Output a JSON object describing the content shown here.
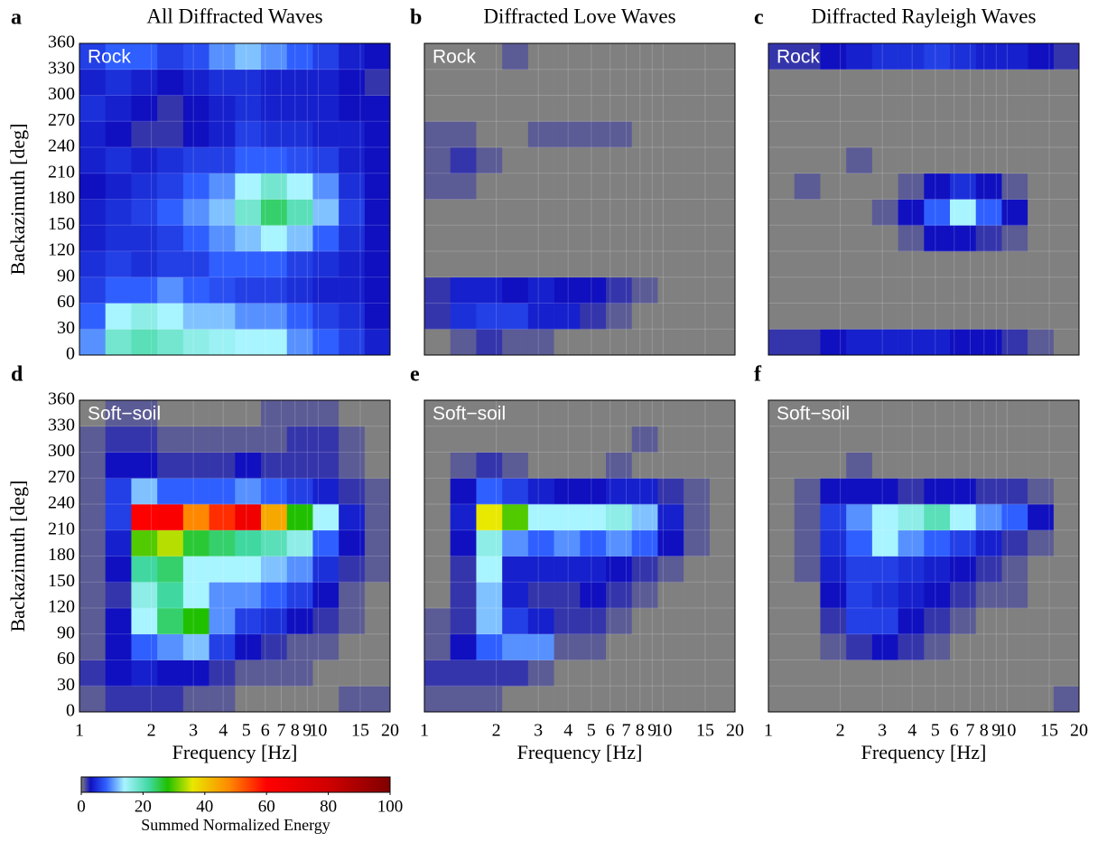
{
  "chart_data": [
    {
      "type": "heatmap",
      "label": "a",
      "title": "All Diffracted Waves",
      "annotation": "Rock",
      "ylabel": "Backazimuth [deg]",
      "xscale": "log",
      "xlim": [
        1,
        20
      ],
      "ylim": [
        0,
        360
      ],
      "xticks": [
        1,
        2,
        3,
        4,
        5,
        6,
        7,
        8,
        9,
        10,
        15,
        20
      ],
      "yticks": [
        0,
        30,
        60,
        90,
        120,
        150,
        180,
        210,
        240,
        270,
        300,
        330,
        360
      ],
      "xbins": [
        1,
        1.284,
        1.649,
        2.118,
        2.719,
        3.492,
        4.484,
        5.757,
        7.393,
        9.493,
        12.19,
        15.65,
        20
      ],
      "ybins": [
        0,
        30,
        60,
        90,
        120,
        150,
        180,
        210,
        240,
        270,
        300,
        330,
        360
      ],
      "values": [
        [
          10,
          18,
          20,
          18,
          16,
          15,
          14,
          14,
          10,
          8,
          6,
          4
        ],
        [
          8,
          14,
          16,
          14,
          12,
          12,
          10,
          10,
          8,
          6,
          5,
          3
        ],
        [
          6,
          8,
          8,
          10,
          8,
          7,
          6,
          6,
          5,
          4,
          4,
          3
        ],
        [
          5,
          6,
          5,
          6,
          6,
          8,
          8,
          8,
          6,
          5,
          4,
          3
        ],
        [
          4,
          5,
          5,
          6,
          8,
          10,
          12,
          14,
          12,
          8,
          5,
          3
        ],
        [
          4,
          5,
          6,
          8,
          10,
          12,
          18,
          24,
          20,
          12,
          6,
          3
        ],
        [
          3,
          4,
          5,
          6,
          8,
          10,
          14,
          18,
          14,
          10,
          5,
          3
        ],
        [
          4,
          5,
          4,
          5,
          6,
          6,
          8,
          8,
          7,
          6,
          4,
          3
        ],
        [
          4,
          3,
          2,
          2,
          3,
          4,
          6,
          5,
          5,
          4,
          4,
          3
        ],
        [
          5,
          4,
          3,
          2,
          3,
          4,
          5,
          4,
          4,
          4,
          3,
          3
        ],
        [
          4,
          5,
          4,
          3,
          4,
          5,
          5,
          4,
          4,
          4,
          3,
          2
        ],
        [
          6,
          8,
          8,
          6,
          7,
          10,
          12,
          10,
          8,
          6,
          4,
          3
        ]
      ]
    },
    {
      "type": "heatmap",
      "label": "b",
      "title": "Diffracted Love Waves",
      "annotation": "Rock",
      "xscale": "log",
      "xlim": [
        1,
        20
      ],
      "ylim": [
        0,
        360
      ],
      "xticks": [
        1,
        2,
        3,
        4,
        5,
        6,
        7,
        8,
        9,
        10,
        15,
        20
      ],
      "yticks": [
        0,
        30,
        60,
        90,
        120,
        150,
        180,
        210,
        240,
        270,
        300,
        330,
        360
      ],
      "xbins": [
        1,
        1.284,
        1.649,
        2.118,
        2.719,
        3.492,
        4.484,
        5.757,
        7.393,
        9.493,
        12.19,
        15.65,
        20
      ],
      "ybins": [
        0,
        30,
        60,
        90,
        120,
        150,
        180,
        210,
        240,
        270,
        300,
        330,
        360
      ],
      "values": [
        [
          0,
          1,
          2,
          1,
          1,
          0,
          0,
          0,
          0,
          0,
          0,
          0
        ],
        [
          2,
          5,
          6,
          6,
          4,
          4,
          2,
          1,
          0,
          0,
          0,
          0
        ],
        [
          2,
          4,
          4,
          3,
          4,
          3,
          3,
          2,
          1,
          0,
          0,
          0
        ],
        [
          0,
          0,
          0,
          0,
          0,
          0,
          0,
          0,
          0,
          0,
          0,
          0
        ],
        [
          0,
          0,
          0,
          0,
          0,
          0,
          0,
          0,
          0,
          0,
          0,
          0
        ],
        [
          0,
          0,
          0,
          0,
          0,
          0,
          0,
          0,
          0,
          0,
          0,
          0
        ],
        [
          1,
          1,
          0,
          0,
          0,
          0,
          0,
          0,
          0,
          0,
          0,
          0
        ],
        [
          1,
          2,
          1,
          0,
          0,
          0,
          0,
          0,
          0,
          0,
          0,
          0
        ],
        [
          1,
          1,
          0,
          0,
          1,
          1,
          1,
          1,
          0,
          0,
          0,
          0
        ],
        [
          0,
          0,
          0,
          0,
          0,
          0,
          0,
          0,
          0,
          0,
          0,
          0
        ],
        [
          0,
          0,
          0,
          0,
          0,
          0,
          0,
          0,
          0,
          0,
          0,
          0
        ],
        [
          0,
          0,
          0,
          1,
          0,
          0,
          0,
          0,
          0,
          0,
          0,
          0
        ]
      ]
    },
    {
      "type": "heatmap",
      "label": "c",
      "title": "Diffracted Rayleigh Waves",
      "annotation": "Rock",
      "xscale": "log",
      "xlim": [
        1,
        20
      ],
      "ylim": [
        0,
        360
      ],
      "xticks": [
        1,
        2,
        3,
        4,
        5,
        6,
        7,
        8,
        9,
        10,
        15,
        20
      ],
      "yticks": [
        0,
        30,
        60,
        90,
        120,
        150,
        180,
        210,
        240,
        270,
        300,
        330,
        360
      ],
      "xbins": [
        1,
        1.284,
        1.649,
        2.118,
        2.719,
        3.492,
        4.484,
        5.757,
        7.393,
        9.493,
        12.19,
        15.65,
        20
      ],
      "ybins": [
        0,
        30,
        60,
        90,
        120,
        150,
        180,
        210,
        240,
        270,
        300,
        330,
        360
      ],
      "values": [
        [
          2,
          2,
          3,
          4,
          4,
          4,
          4,
          3,
          3,
          2,
          1,
          0
        ],
        [
          0,
          0,
          0,
          0,
          0,
          0,
          0,
          0,
          0,
          0,
          0,
          0
        ],
        [
          0,
          0,
          0,
          0,
          0,
          0,
          0,
          0,
          0,
          0,
          0,
          0
        ],
        [
          0,
          0,
          0,
          0,
          0,
          0,
          0,
          0,
          0,
          0,
          0,
          0
        ],
        [
          0,
          0,
          0,
          0,
          0,
          1,
          3,
          3,
          2,
          1,
          0,
          0
        ],
        [
          0,
          0,
          0,
          0,
          1,
          3,
          8,
          14,
          8,
          3,
          0,
          0
        ],
        [
          0,
          1,
          0,
          0,
          0,
          1,
          3,
          5,
          3,
          1,
          0,
          0
        ],
        [
          0,
          0,
          0,
          1,
          0,
          0,
          0,
          0,
          0,
          0,
          0,
          0
        ],
        [
          0,
          0,
          0,
          0,
          0,
          0,
          0,
          0,
          0,
          0,
          0,
          0
        ],
        [
          0,
          0,
          0,
          0,
          0,
          0,
          0,
          0,
          0,
          0,
          0,
          0
        ],
        [
          0,
          0,
          0,
          0,
          0,
          0,
          0,
          0,
          0,
          0,
          0,
          0
        ],
        [
          2,
          2,
          3,
          4,
          5,
          5,
          6,
          5,
          4,
          4,
          3,
          2
        ]
      ]
    },
    {
      "type": "heatmap",
      "label": "d",
      "annotation": "Soft−soil",
      "xlabel": "Frequency [Hz]",
      "ylabel": "Backazimuth [deg]",
      "xscale": "log",
      "xlim": [
        1,
        20
      ],
      "ylim": [
        0,
        360
      ],
      "xticks": [
        1,
        2,
        3,
        4,
        5,
        6,
        7,
        8,
        9,
        10,
        15,
        20
      ],
      "yticks": [
        0,
        30,
        60,
        90,
        120,
        150,
        180,
        210,
        240,
        270,
        300,
        330,
        360
      ],
      "xbins": [
        1,
        1.284,
        1.649,
        2.118,
        2.719,
        3.492,
        4.484,
        5.757,
        7.393,
        9.493,
        12.19,
        15.65,
        20
      ],
      "ybins": [
        0,
        30,
        60,
        90,
        120,
        150,
        180,
        210,
        240,
        270,
        300,
        330,
        360
      ],
      "values": [
        [
          1,
          2,
          2,
          2,
          1,
          1,
          0,
          0,
          0,
          0,
          1,
          1
        ],
        [
          2,
          3,
          4,
          3,
          3,
          2,
          1,
          1,
          1,
          0,
          0,
          0
        ],
        [
          1,
          3,
          8,
          10,
          12,
          6,
          3,
          2,
          1,
          1,
          0,
          0
        ],
        [
          1,
          3,
          14,
          24,
          28,
          10,
          6,
          5,
          3,
          2,
          1,
          0
        ],
        [
          1,
          2,
          16,
          22,
          14,
          10,
          10,
          8,
          6,
          3,
          1,
          0
        ],
        [
          1,
          3,
          22,
          24,
          14,
          14,
          14,
          12,
          10,
          5,
          2,
          1
        ],
        [
          1,
          4,
          30,
          34,
          26,
          24,
          22,
          20,
          16,
          8,
          3,
          1
        ],
        [
          1,
          6,
          60,
          62,
          48,
          56,
          66,
          44,
          28,
          14,
          4,
          1
        ],
        [
          1,
          6,
          12,
          8,
          8,
          8,
          10,
          8,
          6,
          4,
          2,
          1
        ],
        [
          1,
          3,
          3,
          2,
          2,
          2,
          3,
          2,
          2,
          2,
          1,
          0
        ],
        [
          1,
          2,
          2,
          1,
          1,
          1,
          1,
          1,
          2,
          2,
          1,
          0
        ],
        [
          0,
          1,
          1,
          0,
          0,
          0,
          0,
          1,
          1,
          1,
          0,
          0
        ]
      ]
    },
    {
      "type": "heatmap",
      "label": "e",
      "annotation": "Soft−soil",
      "xlabel": "Frequency [Hz]",
      "xscale": "log",
      "xlim": [
        1,
        20
      ],
      "ylim": [
        0,
        360
      ],
      "xticks": [
        1,
        2,
        3,
        4,
        5,
        6,
        7,
        8,
        9,
        10,
        15,
        20
      ],
      "yticks": [
        0,
        30,
        60,
        90,
        120,
        150,
        180,
        210,
        240,
        270,
        300,
        330,
        360
      ],
      "xbins": [
        1,
        1.284,
        1.649,
        2.118,
        2.719,
        3.492,
        4.484,
        5.757,
        7.393,
        9.493,
        12.19,
        15.65,
        20
      ],
      "ybins": [
        0,
        30,
        60,
        90,
        120,
        150,
        180,
        210,
        240,
        270,
        300,
        330,
        360
      ],
      "values": [
        [
          1,
          1,
          1,
          0,
          0,
          0,
          0,
          0,
          0,
          0,
          0,
          0
        ],
        [
          2,
          2,
          2,
          2,
          1,
          0,
          0,
          0,
          0,
          0,
          0,
          0
        ],
        [
          1,
          3,
          8,
          10,
          10,
          1,
          1,
          0,
          0,
          0,
          0,
          0
        ],
        [
          1,
          2,
          12,
          6,
          4,
          2,
          2,
          1,
          0,
          0,
          0,
          0
        ],
        [
          0,
          2,
          12,
          4,
          2,
          2,
          3,
          2,
          1,
          0,
          0,
          0
        ],
        [
          0,
          2,
          14,
          4,
          4,
          4,
          4,
          3,
          2,
          1,
          0,
          0
        ],
        [
          0,
          3,
          16,
          10,
          8,
          10,
          8,
          10,
          8,
          3,
          1,
          0
        ],
        [
          0,
          4,
          36,
          30,
          14,
          14,
          14,
          16,
          12,
          4,
          1,
          0
        ],
        [
          0,
          3,
          8,
          6,
          4,
          3,
          3,
          4,
          4,
          2,
          1,
          0
        ],
        [
          0,
          1,
          2,
          1,
          0,
          0,
          0,
          1,
          0,
          0,
          0,
          0
        ],
        [
          0,
          0,
          0,
          0,
          0,
          0,
          0,
          0,
          1,
          0,
          0,
          0
        ],
        [
          0,
          0,
          0,
          0,
          0,
          0,
          0,
          0,
          0,
          0,
          0,
          0
        ]
      ]
    },
    {
      "type": "heatmap",
      "label": "f",
      "annotation": "Soft−soil",
      "xlabel": "Frequency [Hz]",
      "xscale": "log",
      "xlim": [
        1,
        20
      ],
      "ylim": [
        0,
        360
      ],
      "xticks": [
        1,
        2,
        3,
        4,
        5,
        6,
        7,
        8,
        9,
        10,
        15,
        20
      ],
      "yticks": [
        0,
        30,
        60,
        90,
        120,
        150,
        180,
        210,
        240,
        270,
        300,
        330,
        360
      ],
      "xbins": [
        1,
        1.284,
        1.649,
        2.118,
        2.719,
        3.492,
        4.484,
        5.757,
        7.393,
        9.493,
        12.19,
        15.65,
        20
      ],
      "ybins": [
        0,
        30,
        60,
        90,
        120,
        150,
        180,
        210,
        240,
        270,
        300,
        330,
        360
      ],
      "values": [
        [
          0,
          0,
          0,
          0,
          0,
          0,
          0,
          0,
          0,
          0,
          0,
          1
        ],
        [
          0,
          0,
          0,
          0,
          0,
          0,
          0,
          0,
          0,
          0,
          0,
          0
        ],
        [
          0,
          0,
          1,
          2,
          3,
          2,
          1,
          0,
          0,
          0,
          0,
          0
        ],
        [
          0,
          0,
          2,
          6,
          6,
          3,
          2,
          1,
          0,
          0,
          0,
          0
        ],
        [
          0,
          0,
          3,
          6,
          5,
          4,
          3,
          2,
          1,
          1,
          0,
          0
        ],
        [
          0,
          1,
          4,
          6,
          6,
          5,
          4,
          3,
          2,
          1,
          0,
          0
        ],
        [
          0,
          1,
          5,
          8,
          14,
          10,
          8,
          6,
          4,
          2,
          1,
          0
        ],
        [
          0,
          1,
          6,
          10,
          14,
          16,
          20,
          14,
          10,
          8,
          3,
          0
        ],
        [
          0,
          1,
          3,
          3,
          3,
          2,
          3,
          3,
          2,
          2,
          1,
          0
        ],
        [
          0,
          0,
          0,
          1,
          0,
          0,
          0,
          0,
          0,
          0,
          0,
          0
        ],
        [
          0,
          0,
          0,
          0,
          0,
          0,
          0,
          0,
          0,
          0,
          0,
          0
        ],
        [
          0,
          0,
          0,
          0,
          0,
          0,
          0,
          0,
          0,
          0,
          0,
          0
        ]
      ]
    }
  ],
  "colorbar": {
    "label": "Summed Normalized Energy",
    "lim": [
      0,
      100
    ],
    "ticks": [
      0,
      20,
      40,
      60,
      80,
      100
    ],
    "colormap": [
      {
        "value": 0,
        "color": "#808080"
      },
      {
        "value": 3,
        "color": "#1010c0"
      },
      {
        "value": 8,
        "color": "#2f5fff"
      },
      {
        "value": 14,
        "color": "#a8f4ff"
      },
      {
        "value": 22,
        "color": "#40d8a0"
      },
      {
        "value": 28,
        "color": "#20c000"
      },
      {
        "value": 36,
        "color": "#e8e800"
      },
      {
        "value": 48,
        "color": "#ff8800"
      },
      {
        "value": 60,
        "color": "#ff0000"
      },
      {
        "value": 80,
        "color": "#d00000"
      },
      {
        "value": 100,
        "color": "#800000"
      }
    ]
  }
}
